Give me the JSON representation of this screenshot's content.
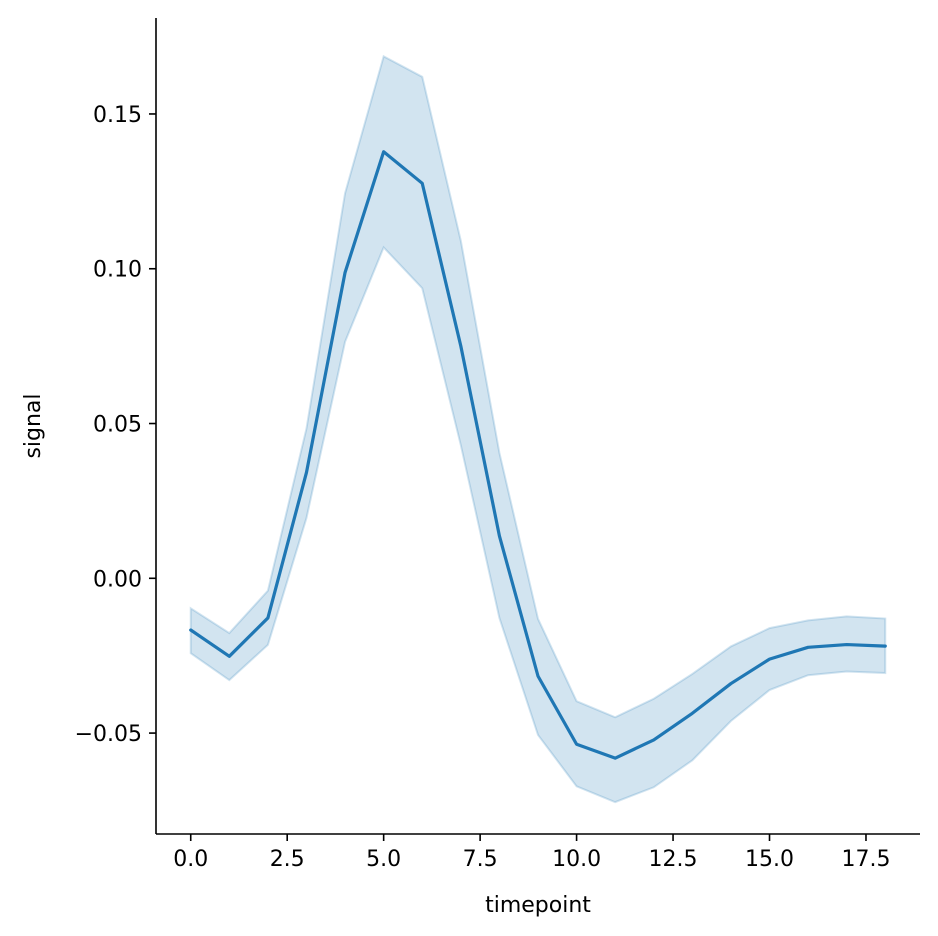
{
  "chart_data": {
    "type": "line",
    "title": "",
    "xlabel": "timepoint",
    "ylabel": "signal",
    "xlim": [
      -0.9,
      18.9
    ],
    "ylim": [
      -0.0826,
      0.181
    ],
    "x_ticks": [
      0,
      2.5,
      5,
      7.5,
      10,
      12.5,
      15,
      17.5
    ],
    "x_tick_labels": [
      "0.0",
      "2.5",
      "5.0",
      "7.5",
      "10.0",
      "12.5",
      "15.0",
      "17.5"
    ],
    "y_ticks": [
      -0.05,
      0,
      0.05,
      0.1,
      0.15
    ],
    "y_tick_labels": [
      "−0.05",
      "0.00",
      "0.05",
      "0.10",
      "0.15"
    ],
    "grid": false,
    "legend": "none",
    "colors": {
      "line": "#1f77b4",
      "band": "#1f77b4",
      "axis": "#000000"
    },
    "series": [
      {
        "x": [
          0,
          1,
          2,
          3,
          4,
          5,
          6,
          7,
          8,
          9,
          10,
          11,
          12,
          13,
          14,
          15,
          16,
          17,
          18
        ],
        "y": [
          -0.0167,
          -0.0252,
          -0.0128,
          0.0342,
          0.0988,
          0.1378,
          0.1276,
          0.075,
          0.0137,
          -0.0316,
          -0.0536,
          -0.0581,
          -0.0522,
          -0.0436,
          -0.034,
          -0.0261,
          -0.0223,
          -0.0214,
          -0.0219
        ],
        "ci_low": [
          -0.0242,
          -0.0329,
          -0.0215,
          0.0195,
          0.0764,
          0.1069,
          0.0937,
          0.043,
          -0.0128,
          -0.0506,
          -0.0672,
          -0.0723,
          -0.0675,
          -0.0588,
          -0.0461,
          -0.0361,
          -0.0313,
          -0.0301,
          -0.0306
        ],
        "ci_high": [
          -0.0097,
          -0.0177,
          -0.004,
          0.0484,
          0.1244,
          0.1686,
          0.162,
          0.109,
          0.0405,
          -0.0131,
          -0.0397,
          -0.0449,
          -0.0389,
          -0.0309,
          -0.022,
          -0.0161,
          -0.0136,
          -0.0123,
          -0.013
        ]
      }
    ]
  }
}
